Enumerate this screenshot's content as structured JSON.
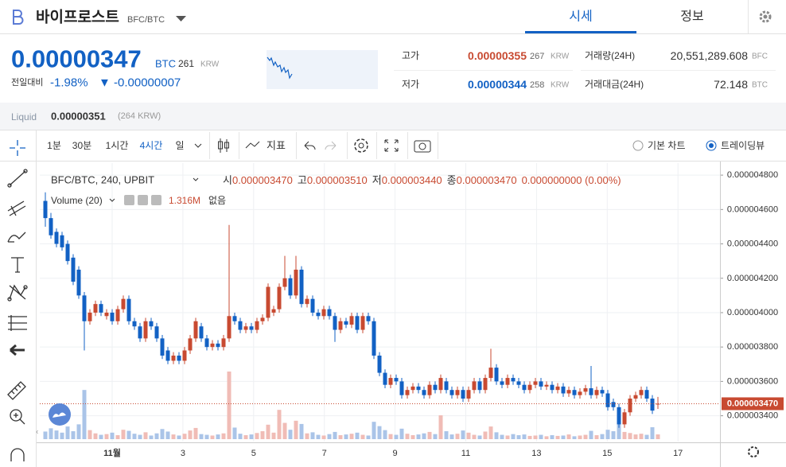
{
  "header": {
    "title": "바이프로스트",
    "pair": "BFC/BTC",
    "tabs": [
      "시세",
      "정보"
    ]
  },
  "ticker": {
    "price": "0.00000347",
    "unit": "BTC",
    "krw": "261",
    "krw_unit": "KRW",
    "change_label": "전일대비",
    "change_rate": "-1.98%",
    "change": "▼ -0.00000007",
    "high": {
      "label": "고가",
      "value": "0.00000355",
      "krw": "267",
      "krw_unit": "KRW"
    },
    "low": {
      "label": "저가",
      "value": "0.00000344",
      "krw": "258",
      "krw_unit": "KRW"
    },
    "volume": {
      "label": "거래량(24H)",
      "value": "20,551,289.608",
      "unit": "BFC"
    },
    "amount": {
      "label": "거래대금(24H)",
      "value": "72.148",
      "unit": "BTC"
    }
  },
  "liquid": {
    "label": "Liquid",
    "price": "0.00000351",
    "krw": "(264 KRW)"
  },
  "toolbar": {
    "intervals": [
      "1분",
      "30분",
      "1시간",
      "4시간",
      "일"
    ],
    "indicator": "지표",
    "chart_modes": [
      "기본 차트",
      "트레이딩뷰"
    ]
  },
  "chart_data": {
    "type": "candlestick",
    "title": "BFC/BTC, 240, UPBIT",
    "ohlc_legend": [
      {
        "label": "시",
        "value": "0.000003470"
      },
      {
        "label": "고",
        "value": "0.000003510"
      },
      {
        "label": "저",
        "value": "0.000003440"
      },
      {
        "label": "종",
        "value": "0.000003470"
      }
    ],
    "change": "0.000000000 (0.00%)",
    "up_color": "#c84a31",
    "down_color": "#1261c4",
    "up_volume_color": "#f0bcb6",
    "down_volume_color": "#aac4e8",
    "open": [
      4.65e-06,
      4.55e-06,
      4.47e-06,
      4.45e-06,
      4.4e-06,
      4.32e-06,
      4.25e-06,
      4.1e-06,
      3.95e-06,
      4e-06,
      4.05e-06,
      3.98e-06,
      4e-06,
      3.95e-06,
      4.02e-06,
      4.08e-06,
      3.95e-06,
      3.92e-06,
      3.85e-06,
      3.95e-06,
      3.92e-06,
      3.85e-06,
      3.78e-06,
      3.72e-06,
      3.75e-06,
      3.72e-06,
      3.78e-06,
      3.85e-06,
      3.92e-06,
      3.85e-06,
      3.8e-06,
      3.82e-06,
      3.8e-06,
      3.85e-06,
      3.98e-06,
      3.95e-06,
      3.9e-06,
      3.92e-06,
      3.9e-06,
      3.95e-06,
      3.97e-06,
      4e-06,
      4.02e-06,
      4.15e-06,
      4.2e-06,
      4.1e-06,
      4.25e-06,
      4.05e-06,
      4.08e-06,
      4e-06,
      3.98e-06,
      4.02e-06,
      3.98e-06,
      3.9e-06,
      3.95e-06,
      3.93e-06,
      3.98e-06,
      3.9e-06,
      3.98e-06,
      3.95e-06,
      3.75e-06,
      3.65e-06,
      3.58e-06,
      3.62e-06,
      3.6e-06,
      3.52e-06,
      3.55e-06,
      3.57e-06,
      3.55e-06,
      3.52e-06,
      3.58e-06,
      3.55e-06,
      3.6e-06,
      3.55e-06,
      3.52e-06,
      3.55e-06,
      3.5e-06,
      3.55e-06,
      3.6e-06,
      3.55e-06,
      3.62e-06,
      3.68e-06,
      3.6e-06,
      3.58e-06,
      3.62e-06,
      3.6e-06,
      3.58e-06,
      3.55e-06,
      3.58e-06,
      3.6e-06,
      3.57e-06,
      3.58e-06,
      3.55e-06,
      3.57e-06,
      3.53e-06,
      3.55e-06,
      3.52e-06,
      3.54e-06,
      3.56e-06,
      3.52e-06,
      3.55e-06,
      3.53e-06,
      3.48e-06,
      3.45e-06,
      3.35e-06,
      3.42e-06,
      3.5e-06,
      3.52e-06,
      3.55e-06,
      3.5e-06,
      3.47e-06
    ],
    "high": [
      4.7e-06,
      4.58e-06,
      4.49e-06,
      4.47e-06,
      4.42e-06,
      4.34e-06,
      4.27e-06,
      4.12e-06,
      4.02e-06,
      4.07e-06,
      4.07e-06,
      4.02e-06,
      4.02e-06,
      4.04e-06,
      4.1e-06,
      4.1e-06,
      3.97e-06,
      3.94e-06,
      3.97e-06,
      3.97e-06,
      3.94e-06,
      3.87e-06,
      3.8e-06,
      3.77e-06,
      3.77e-06,
      3.8e-06,
      3.87e-06,
      3.97e-06,
      3.94e-06,
      3.87e-06,
      3.84e-06,
      3.84e-06,
      3.87e-06,
      4.51e-06,
      4e-06,
      3.97e-06,
      3.94e-06,
      3.94e-06,
      3.97e-06,
      3.99e-06,
      4.17e-06,
      4.04e-06,
      4.17e-06,
      4.33e-06,
      4.22e-06,
      4.33e-06,
      4.27e-06,
      4.1e-06,
      4.1e-06,
      4.02e-06,
      4.04e-06,
      4.04e-06,
      4e-06,
      3.97e-06,
      3.97e-06,
      4e-06,
      4e-06,
      4e-06,
      4e-06,
      3.97e-06,
      3.77e-06,
      3.67e-06,
      3.64e-06,
      3.64e-06,
      3.62e-06,
      3.57e-06,
      3.59e-06,
      3.59e-06,
      3.57e-06,
      3.6e-06,
      3.6e-06,
      3.64e-06,
      3.62e-06,
      3.57e-06,
      3.57e-06,
      3.57e-06,
      3.57e-06,
      3.62e-06,
      3.62e-06,
      3.64e-06,
      3.79e-06,
      3.7e-06,
      3.62e-06,
      3.64e-06,
      3.64e-06,
      3.62e-06,
      3.6e-06,
      3.6e-06,
      3.62e-06,
      3.62e-06,
      3.6e-06,
      3.6e-06,
      3.59e-06,
      3.59e-06,
      3.57e-06,
      3.57e-06,
      3.56e-06,
      3.58e-06,
      3.69e-06,
      3.57e-06,
      3.57e-06,
      3.55e-06,
      3.5e-06,
      3.47e-06,
      3.44e-06,
      3.52e-06,
      3.54e-06,
      3.57e-06,
      3.57e-06,
      3.52e-06,
      3.51e-06
    ],
    "low": [
      4.5e-06,
      4.43e-06,
      4.38e-06,
      4.36e-06,
      4.28e-06,
      4.16e-06,
      4.08e-06,
      3.78e-06,
      3.93e-06,
      3.98e-06,
      3.98e-06,
      3.96e-06,
      3.93e-06,
      3.93e-06,
      4e-06,
      3.93e-06,
      3.9e-06,
      3.83e-06,
      3.83e-06,
      3.9e-06,
      3.83e-06,
      3.73e-06,
      3.7e-06,
      3.7e-06,
      3.7e-06,
      3.7e-06,
      3.76e-06,
      3.83e-06,
      3.83e-06,
      3.78e-06,
      3.78e-06,
      3.78e-06,
      3.78e-06,
      3.83e-06,
      3.93e-06,
      3.88e-06,
      3.88e-06,
      3.88e-06,
      3.88e-06,
      3.93e-06,
      3.95e-06,
      3.98e-06,
      4e-06,
      4.13e-06,
      4.08e-06,
      4.08e-06,
      4.03e-06,
      4.03e-06,
      3.98e-06,
      3.96e-06,
      3.96e-06,
      3.96e-06,
      3.83e-06,
      3.88e-06,
      3.91e-06,
      3.91e-06,
      3.88e-06,
      3.88e-06,
      3.93e-06,
      3.73e-06,
      3.63e-06,
      3.56e-06,
      3.56e-06,
      3.58e-06,
      3.5e-06,
      3.5e-06,
      3.53e-06,
      3.53e-06,
      3.5e-06,
      3.5e-06,
      3.53e-06,
      3.53e-06,
      3.53e-06,
      3.5e-06,
      3.5e-06,
      3.48e-06,
      3.48e-06,
      3.53e-06,
      3.53e-06,
      3.53e-06,
      3.6e-06,
      3.58e-06,
      3.56e-06,
      3.56e-06,
      3.58e-06,
      3.56e-06,
      3.53e-06,
      3.53e-06,
      3.56e-06,
      3.55e-06,
      3.55e-06,
      3.53e-06,
      3.53e-06,
      3.51e-06,
      3.51e-06,
      3.5e-06,
      3.5e-06,
      3.52e-06,
      3.5e-06,
      3.5e-06,
      3.51e-06,
      3.43e-06,
      3.43e-06,
      3.33e-06,
      3.33e-06,
      3.4e-06,
      3.48e-06,
      3.5e-06,
      3.48e-06,
      3.41e-06,
      3.44e-06
    ],
    "close": [
      4.55e-06,
      4.45e-06,
      4.4e-06,
      4.38e-06,
      4.3e-06,
      4.18e-06,
      4.1e-06,
      3.95e-06,
      4e-06,
      4.05e-06,
      4e-06,
      4e-06,
      3.95e-06,
      4.02e-06,
      4.08e-06,
      3.95e-06,
      3.92e-06,
      3.85e-06,
      3.95e-06,
      3.92e-06,
      3.85e-06,
      3.75e-06,
      3.72e-06,
      3.75e-06,
      3.72e-06,
      3.78e-06,
      3.85e-06,
      3.95e-06,
      3.85e-06,
      3.8e-06,
      3.82e-06,
      3.8e-06,
      3.85e-06,
      3.98e-06,
      3.95e-06,
      3.9e-06,
      3.92e-06,
      3.9e-06,
      3.95e-06,
      3.97e-06,
      4.15e-06,
      4.02e-06,
      4.15e-06,
      4.2e-06,
      4.1e-06,
      4.25e-06,
      4.05e-06,
      4.08e-06,
      4e-06,
      3.98e-06,
      4.02e-06,
      3.98e-06,
      3.9e-06,
      3.95e-06,
      3.93e-06,
      3.98e-06,
      3.9e-06,
      3.98e-06,
      3.95e-06,
      3.75e-06,
      3.65e-06,
      3.58e-06,
      3.62e-06,
      3.6e-06,
      3.52e-06,
      3.55e-06,
      3.57e-06,
      3.55e-06,
      3.52e-06,
      3.58e-06,
      3.55e-06,
      3.62e-06,
      3.55e-06,
      3.52e-06,
      3.55e-06,
      3.5e-06,
      3.55e-06,
      3.6e-06,
      3.55e-06,
      3.62e-06,
      3.68e-06,
      3.6e-06,
      3.58e-06,
      3.62e-06,
      3.6e-06,
      3.58e-06,
      3.55e-06,
      3.58e-06,
      3.6e-06,
      3.57e-06,
      3.58e-06,
      3.55e-06,
      3.57e-06,
      3.53e-06,
      3.55e-06,
      3.52e-06,
      3.54e-06,
      3.56e-06,
      3.52e-06,
      3.55e-06,
      3.53e-06,
      3.45e-06,
      3.45e-06,
      3.35e-06,
      3.42e-06,
      3.5e-06,
      3.52e-06,
      3.55e-06,
      3.5e-06,
      3.43e-06,
      3.47e-06
    ],
    "volume": {
      "name": "Volume (20)",
      "last_label": "1.316M",
      "extra": "없음",
      "values": [
        2100000,
        3000000,
        2400000,
        1800000,
        3500000,
        2200000,
        4100000,
        13600000,
        2500000,
        1600000,
        1200000,
        1400000,
        1800000,
        1100000,
        2600000,
        2300000,
        1500000,
        1200000,
        1900000,
        1000000,
        1600000,
        2800000,
        2100000,
        1300000,
        1000000,
        1500000,
        2400000,
        3100000,
        1400000,
        1200000,
        1000000,
        1300000,
        1600000,
        18700000,
        3200000,
        1500000,
        1100000,
        1300000,
        1700000,
        2200000,
        4000000,
        1800000,
        8100000,
        4500000,
        2600000,
        5100000,
        4200000,
        1600000,
        1900000,
        1200000,
        1000000,
        1400000,
        2000000,
        1100000,
        1300000,
        1500000,
        1800000,
        1200000,
        1000000,
        4800000,
        3600000,
        2500000,
        1400000,
        1200000,
        2900000,
        1500000,
        1100000,
        1300000,
        1600000,
        2000000,
        1400000,
        6600000,
        2200000,
        1300000,
        1500000,
        2400000,
        1800000,
        1200000,
        1000000,
        2100000,
        3500000,
        1900000,
        1200000,
        1000000,
        1400000,
        1100000,
        1300000,
        900000,
        1000000,
        1200000,
        800000,
        1100000,
        900000,
        1000000,
        1300000,
        800000,
        1000000,
        1200000,
        2300000,
        1100000,
        1400000,
        2600000,
        2200000,
        4400000,
        2000000,
        1700000,
        1300000,
        1500000,
        1200000,
        3300000,
        1316000
      ]
    },
    "ylim": [
      3.25e-06,
      4.87e-06
    ],
    "yticks": [
      {
        "value": 4.8e-06,
        "label": "0.000004800"
      },
      {
        "value": 4.6e-06,
        "label": "0.000004600"
      },
      {
        "value": 4.4e-06,
        "label": "0.000004400"
      },
      {
        "value": 4.2e-06,
        "label": "0.000004200"
      },
      {
        "value": 4e-06,
        "label": "0.000004000"
      },
      {
        "value": 3.8e-06,
        "label": "0.000003800"
      },
      {
        "value": 3.6e-06,
        "label": "0.000003600"
      },
      {
        "value": 3.4e-06,
        "label": "0.000003400"
      }
    ],
    "price_line": {
      "value": 3.47e-06,
      "label": "0.000003470"
    },
    "xticks": [
      "11월",
      "3",
      "5",
      "7",
      "9",
      "11",
      "13",
      "15",
      "17"
    ],
    "grid": true
  }
}
